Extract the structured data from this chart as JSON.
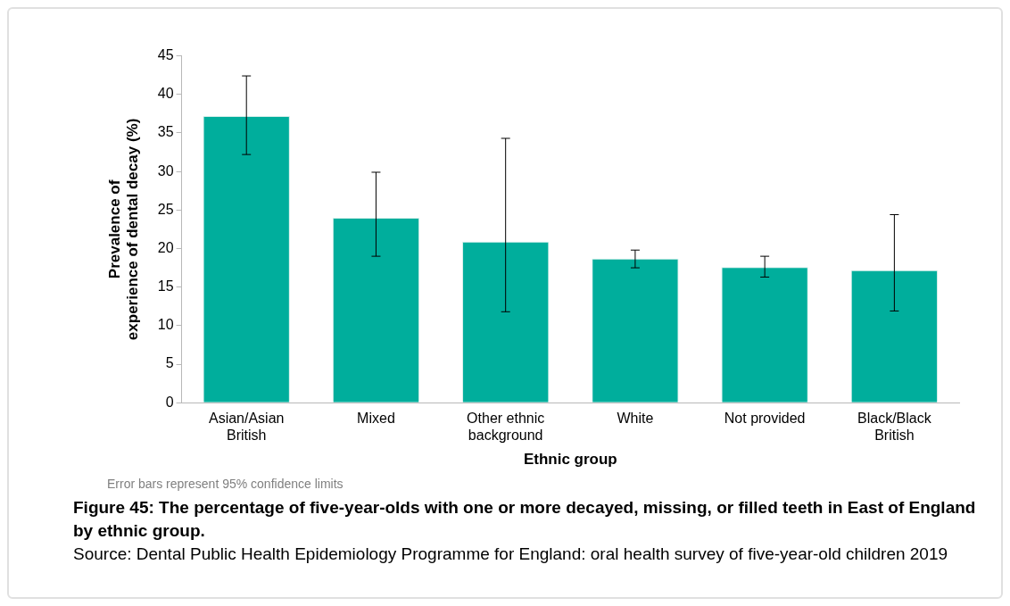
{
  "chart_data": {
    "type": "bar",
    "title": "Figure 45: The percentage of five-year-olds with one or more decayed, missing, or filled teeth in East of England by ethnic group.",
    "xlabel": "Ethnic group",
    "ylabel": "Prevalence of experience of dental decay (%)",
    "categories": [
      "Asian/Asian British",
      "Mixed",
      "Other ethnic background",
      "White",
      "Not provided",
      "Black/Black British"
    ],
    "values": [
      37.2,
      24.0,
      20.9,
      18.7,
      17.6,
      17.2
    ],
    "errors": [
      [
        32.2,
        42.4
      ],
      [
        19.0,
        29.9
      ],
      [
        11.8,
        34.3
      ],
      [
        17.5,
        19.8
      ],
      [
        16.3,
        19.0
      ],
      [
        11.9,
        24.4
      ]
    ],
    "color": "#00ae9c",
    "ylim": [
      0,
      45
    ],
    "yticks": [
      0,
      5,
      10,
      15,
      20,
      25,
      30,
      35,
      40,
      45
    ],
    "grid": false,
    "legend": false,
    "annotations": [
      "Error bars represent 95% confidence limits",
      "Source: Dental Public Health Epidemiology Programme for England: oral health survey of five-year-old children 2019"
    ]
  }
}
